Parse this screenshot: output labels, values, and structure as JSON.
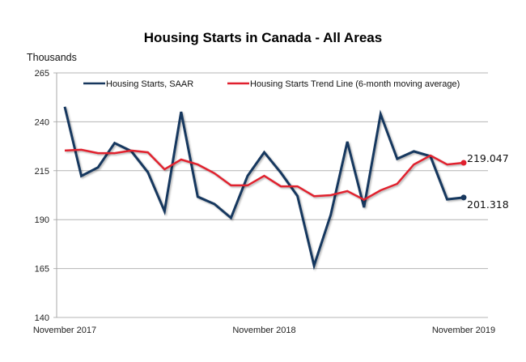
{
  "chart_data": {
    "type": "line",
    "title": "Housing Starts in Canada - All Areas",
    "ylabel": "Thousands",
    "xlabel": "",
    "ylim": [
      140,
      265
    ],
    "yticks": [
      140,
      165,
      190,
      215,
      240,
      265
    ],
    "grid": true,
    "legend_position": "top",
    "x": [
      "Nov 2017",
      "Dec 2017",
      "Jan 2018",
      "Feb 2018",
      "Mar 2018",
      "Apr 2018",
      "May 2018",
      "Jun 2018",
      "Jul 2018",
      "Aug 2018",
      "Sep 2018",
      "Oct 2018",
      "Nov 2018",
      "Dec 2018",
      "Jan 2019",
      "Feb 2019",
      "Mar 2019",
      "Apr 2019",
      "May 2019",
      "Jun 2019",
      "Jul 2019",
      "Aug 2019",
      "Sep 2019",
      "Oct 2019",
      "Nov 2019"
    ],
    "xtick_labels": [
      {
        "index": 0,
        "label": "November 2017"
      },
      {
        "index": 12,
        "label": "November 2018"
      },
      {
        "index": 24,
        "label": "November 2019"
      }
    ],
    "series": [
      {
        "name": "Housing Starts, SAAR",
        "color": "#17375e",
        "values": [
          247.7,
          212.3,
          216.7,
          229.1,
          225.0,
          214.2,
          194.3,
          245.1,
          201.7,
          198.0,
          190.9,
          212.4,
          224.4,
          214.0,
          202.1,
          166.5,
          192.5,
          229.8,
          196.3,
          243.9,
          221.1,
          224.9,
          222.4,
          200.4,
          201.318
        ],
        "end_label": "201.318"
      },
      {
        "name": "Housing Starts Trend Line (6-month moving average)",
        "color": "#e0202e",
        "values": [
          225.3,
          225.7,
          224.0,
          224.0,
          225.3,
          224.4,
          215.7,
          220.7,
          218.2,
          213.7,
          207.5,
          207.5,
          212.4,
          207.0,
          207.0,
          202.0,
          202.5,
          204.6,
          200.2,
          205.0,
          208.3,
          218.2,
          222.8,
          218.2,
          219.047
        ],
        "end_label": "219.047"
      }
    ]
  }
}
